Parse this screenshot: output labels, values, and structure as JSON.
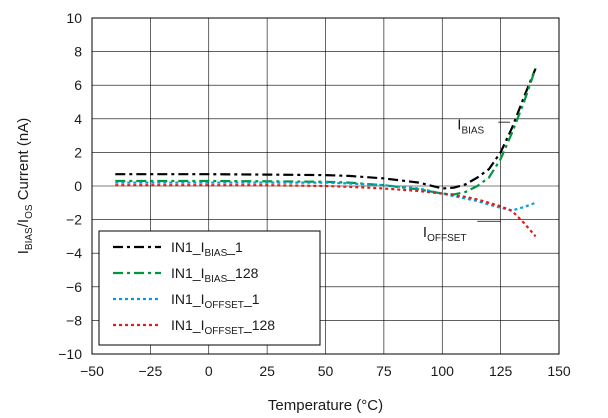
{
  "chart_data": {
    "type": "line",
    "xlabel": "Temperature (°C)",
    "ylabel": {
      "base1": "I",
      "sub1": "BIAS",
      "mid": "/I",
      "sub2": "OS",
      "rest": " Current (nA)"
    },
    "xlim": [
      -50,
      150
    ],
    "ylim": [
      -10,
      10
    ],
    "xticks": [
      -50,
      -25,
      0,
      25,
      50,
      75,
      100,
      125,
      150
    ],
    "yticks": [
      -10,
      -8,
      -6,
      -4,
      -2,
      0,
      2,
      4,
      6,
      8,
      10
    ],
    "xtick_labels": [
      "−50",
      "−25",
      "0",
      "25",
      "50",
      "75",
      "100",
      "125",
      "150"
    ],
    "ytick_labels": [
      "−10",
      "−8",
      "−6",
      "−4",
      "−2",
      "0",
      "2",
      "4",
      "6",
      "8",
      "10"
    ],
    "grid": true,
    "legend_placement": "bottom-left",
    "annotations": [
      {
        "base": "I",
        "sub": "BIAS",
        "x": 115,
        "y": 3.6
      },
      {
        "base": "I",
        "sub": "OFFSET",
        "x": 108,
        "y": -2.8
      }
    ],
    "series": [
      {
        "name": {
          "pre": "IN1_I",
          "sub": "BIAS",
          "post": "_1"
        },
        "color": "#000000",
        "dash": "10,4,3,4",
        "x": [
          -40,
          -25,
          0,
          25,
          50,
          60,
          75,
          90,
          100,
          105,
          110,
          115,
          120,
          125,
          130,
          135,
          140
        ],
        "y": [
          0.7,
          0.7,
          0.7,
          0.68,
          0.65,
          0.6,
          0.45,
          0.2,
          -0.15,
          -0.1,
          0.1,
          0.5,
          1.0,
          2.0,
          3.5,
          5.3,
          7.0
        ]
      },
      {
        "name": {
          "pre": "IN1_I",
          "sub": "BIAS",
          "post": "_128"
        },
        "color": "#009640",
        "dash": "10,4,3,4",
        "x": [
          -40,
          -25,
          0,
          25,
          50,
          60,
          75,
          90,
          100,
          105,
          110,
          115,
          120,
          125,
          130,
          135,
          140
        ],
        "y": [
          0.3,
          0.3,
          0.3,
          0.28,
          0.25,
          0.2,
          0.05,
          -0.2,
          -0.45,
          -0.5,
          -0.35,
          0.0,
          0.5,
          1.6,
          3.2,
          5.0,
          7.0
        ]
      },
      {
        "name": {
          "pre": "IN1_I",
          "sub": "OFFSET",
          "post": "_1"
        },
        "color": "#00a0e0",
        "dash": "3,3",
        "x": [
          -40,
          -25,
          0,
          25,
          50,
          60,
          75,
          90,
          100,
          105,
          110,
          115,
          120,
          125,
          130,
          135,
          140
        ],
        "y": [
          0.2,
          0.2,
          0.2,
          0.2,
          0.2,
          0.15,
          0.05,
          -0.15,
          -0.45,
          -0.6,
          -0.75,
          -0.9,
          -1.1,
          -1.3,
          -1.45,
          -1.25,
          -1.0
        ]
      },
      {
        "name": {
          "pre": "IN1_I",
          "sub": "OFFSET",
          "post": "_128"
        },
        "color": "#e21b1b",
        "dash": "3,3",
        "x": [
          -40,
          -25,
          0,
          25,
          50,
          60,
          75,
          90,
          100,
          105,
          110,
          115,
          120,
          125,
          130,
          135,
          140
        ],
        "y": [
          0.05,
          0.05,
          0.05,
          0.05,
          0.0,
          -0.05,
          -0.15,
          -0.3,
          -0.45,
          -0.55,
          -0.65,
          -0.8,
          -1.0,
          -1.2,
          -1.5,
          -2.2,
          -3.0
        ]
      }
    ]
  }
}
